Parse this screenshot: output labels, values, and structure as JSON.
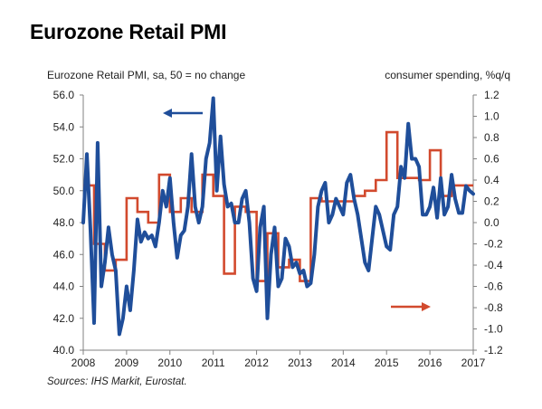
{
  "title": "Eurozone Retail PMI",
  "left_axis_label": "Eurozone Retail PMI, sa, 50 = no change",
  "right_axis_label": "consumer spending, %q/q",
  "source": "Sources: IHS Markit, Eurostat.",
  "colors": {
    "pmi": "#1F4E9A",
    "spending": "#D24A2E",
    "axis": "#808080"
  },
  "chart_data": {
    "type": "line",
    "title": "Eurozone Retail PMI",
    "x_ticks": [
      "2008",
      "2009",
      "2010",
      "2011",
      "2012",
      "2013",
      "2014",
      "2015",
      "2016",
      "2017"
    ],
    "xlim": [
      2008,
      2017
    ],
    "y_left": {
      "label": "Eurozone Retail PMI, sa, 50 = no change",
      "lim": [
        40,
        56
      ],
      "ticks": [
        "40.0",
        "42.0",
        "44.0",
        "46.0",
        "48.0",
        "50.0",
        "52.0",
        "54.0",
        "56.0"
      ]
    },
    "y_right": {
      "label": "consumer spending, %q/q",
      "lim": [
        -1.2,
        1.2
      ],
      "ticks": [
        "-1.2",
        "-1.0",
        "-0.8",
        "-0.6",
        "-0.4",
        "-0.2",
        "0.0",
        "0.2",
        "0.4",
        "0.6",
        "0.8",
        "1.0",
        "1.2"
      ]
    },
    "grid": false,
    "series": [
      {
        "name": "",
        "axis": "left",
        "x": [
          2008.0,
          2008.083,
          2008.167,
          2008.25,
          2008.333,
          2008.417,
          2008.5,
          2008.583,
          2008.667,
          2008.75,
          2008.833,
          2008.917,
          2009.0,
          2009.083,
          2009.167,
          2009.25,
          2009.333,
          2009.417,
          2009.5,
          2009.583,
          2009.667,
          2009.75,
          2009.833,
          2009.917,
          2010.0,
          2010.083,
          2010.167,
          2010.25,
          2010.333,
          2010.417,
          2010.5,
          2010.583,
          2010.667,
          2010.75,
          2010.833,
          2010.917,
          2011.0,
          2011.083,
          2011.167,
          2011.25,
          2011.333,
          2011.417,
          2011.5,
          2011.583,
          2011.667,
          2011.75,
          2011.833,
          2011.917,
          2012.0,
          2012.083,
          2012.167,
          2012.25,
          2012.333,
          2012.417,
          2012.5,
          2012.583,
          2012.667,
          2012.75,
          2012.833,
          2012.917,
          2013.0,
          2013.083,
          2013.167,
          2013.25,
          2013.333,
          2013.417,
          2013.5,
          2013.583,
          2013.667,
          2013.75,
          2013.833,
          2013.917,
          2014.0,
          2014.083,
          2014.167,
          2014.25,
          2014.333,
          2014.417,
          2014.5,
          2014.583,
          2014.667,
          2014.75,
          2014.833,
          2014.917,
          2015.0,
          2015.083,
          2015.167,
          2015.25,
          2015.333,
          2015.417,
          2015.5,
          2015.583,
          2015.667,
          2015.75,
          2015.833,
          2015.917,
          2016.0,
          2016.083,
          2016.167,
          2016.25,
          2016.333,
          2016.417,
          2016.5,
          2016.583,
          2016.667,
          2016.75,
          2016.833,
          2016.917,
          2017.0
        ],
        "values": [
          48.0,
          52.3,
          47.5,
          41.7,
          53.0,
          44.0,
          45.5,
          47.7,
          46.0,
          45.0,
          41.0,
          42.0,
          44.0,
          42.5,
          45.0,
          48.2,
          46.8,
          47.4,
          47.0,
          47.2,
          46.5,
          48.0,
          50.0,
          49.0,
          50.8,
          48.0,
          45.8,
          47.2,
          47.5,
          49.0,
          52.3,
          49.0,
          48.0,
          49.0,
          52.0,
          53.0,
          55.8,
          50.0,
          53.4,
          50.4,
          49.0,
          49.2,
          48.0,
          48.0,
          49.5,
          50.0,
          48.0,
          44.5,
          43.7,
          47.7,
          49.0,
          42.0,
          46.0,
          47.7,
          44.0,
          44.5,
          47.0,
          46.5,
          45.2,
          45.5,
          44.8,
          45.0,
          44.0,
          44.2,
          46.0,
          49.0,
          50.0,
          50.5,
          48.0,
          48.5,
          49.5,
          49.0,
          48.5,
          50.5,
          51.0,
          49.5,
          48.5,
          47.0,
          45.5,
          45.0,
          47.0,
          49.0,
          48.5,
          47.5,
          46.5,
          46.3,
          48.5,
          49.0,
          51.5,
          50.8,
          54.2,
          52.0,
          52.0,
          51.5,
          48.5,
          48.5,
          49.0,
          50.2,
          48.3,
          50.8,
          48.5,
          49.0,
          51.0,
          49.5,
          48.6,
          48.6,
          50.3,
          50.0,
          49.8
        ]
      },
      {
        "name": "",
        "axis": "right",
        "step": true,
        "x": [
          2008.0,
          2008.25,
          2008.5,
          2008.75,
          2009.0,
          2009.25,
          2009.5,
          2009.75,
          2010.0,
          2010.25,
          2010.5,
          2010.75,
          2011.0,
          2011.25,
          2011.5,
          2011.75,
          2012.0,
          2012.25,
          2012.5,
          2012.75,
          2013.0,
          2013.25,
          2013.5,
          2013.75,
          2014.0,
          2014.25,
          2014.5,
          2014.75,
          2015.0,
          2015.25,
          2015.5,
          2015.75,
          2016.0,
          2016.25,
          2016.5,
          2016.75,
          2017.0
        ],
        "values": [
          0.35,
          -0.2,
          -0.45,
          -0.35,
          0.23,
          0.1,
          0.0,
          0.45,
          0.1,
          0.23,
          0.1,
          0.45,
          0.25,
          -0.48,
          0.15,
          0.1,
          -0.55,
          -0.1,
          -0.42,
          -0.35,
          -0.55,
          0.23,
          0.2,
          0.2,
          0.2,
          0.25,
          0.3,
          0.4,
          0.85,
          0.42,
          0.42,
          0.4,
          0.68,
          0.25,
          0.35,
          0.35,
          0.35
        ]
      }
    ],
    "annotations": [
      {
        "type": "arrow",
        "direction": "left",
        "color": "#1F4E9A",
        "meaning": "series on left axis"
      },
      {
        "type": "arrow",
        "direction": "right",
        "color": "#D24A2E",
        "meaning": "series on right axis"
      }
    ]
  }
}
